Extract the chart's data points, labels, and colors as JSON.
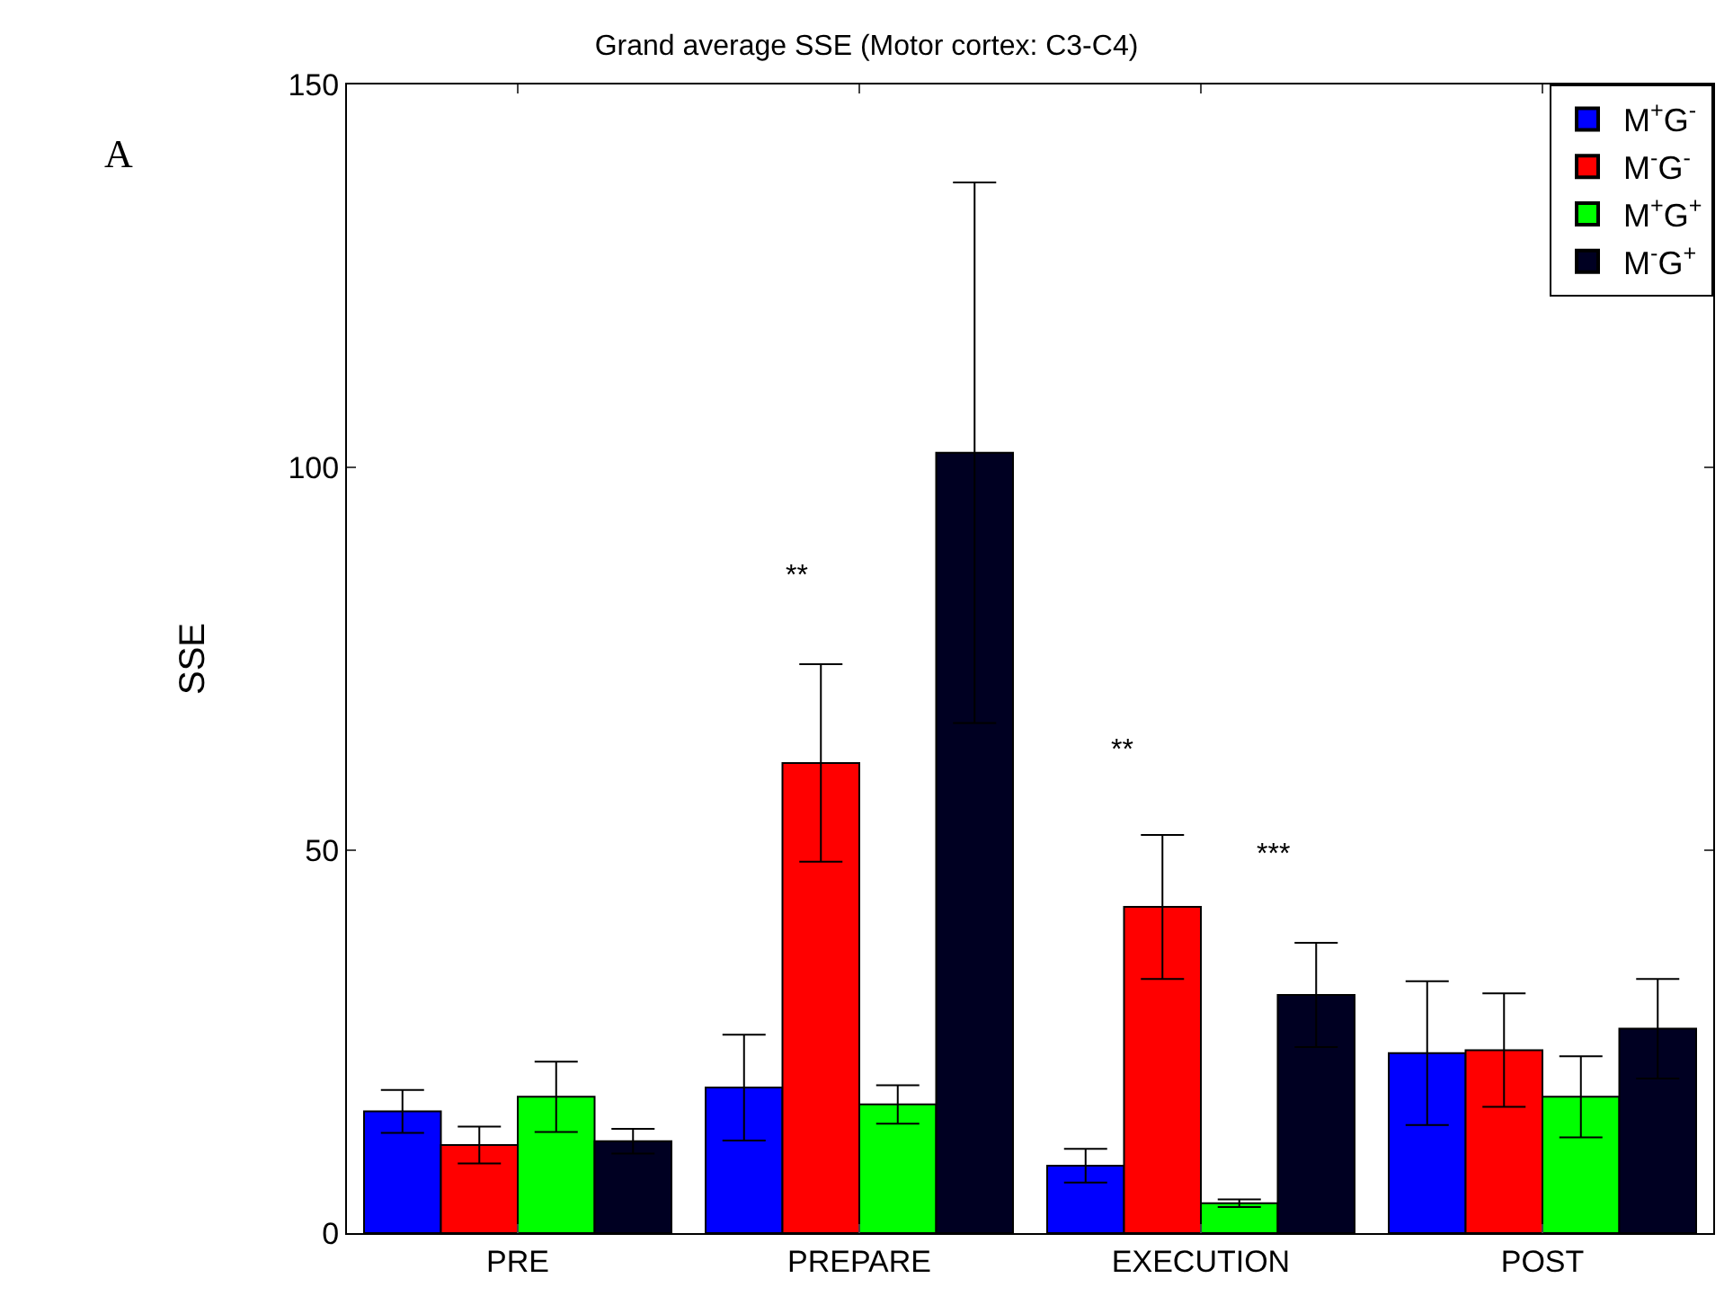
{
  "chart_data": {
    "type": "bar",
    "title": "Grand average SSE (Motor cortex: C3-C4)",
    "ylabel": "SSE",
    "categories": [
      "PRE",
      "PREPARE",
      "EXECUTION",
      "POST"
    ],
    "series": [
      {
        "name": "M$^{+}$G$^{-}$",
        "color": "#0000ff",
        "values": [
          15.9,
          19.0,
          8.8,
          23.5
        ],
        "errors": [
          2.8,
          6.9,
          2.2,
          9.4
        ]
      },
      {
        "name": "M$^{-}$G$^{-}$",
        "color": "#ff0000",
        "values": [
          11.5,
          61.4,
          42.6,
          23.9
        ],
        "errors": [
          2.4,
          12.9,
          9.4,
          7.4
        ]
      },
      {
        "name": "M$^{+}$G$^{+}$",
        "color": "#00ff00",
        "values": [
          17.8,
          16.8,
          3.9,
          17.8
        ],
        "errors": [
          4.6,
          2.5,
          0.5,
          5.3
        ]
      },
      {
        "name": "M$^{-}$G$^{+}$",
        "color": "#000022",
        "values": [
          12.0,
          101.9,
          31.1,
          26.7
        ],
        "errors": [
          1.6,
          35.3,
          6.8,
          6.5
        ]
      }
    ],
    "ylim": [
      0,
      150
    ],
    "yticks": [
      0,
      50,
      100,
      150
    ],
    "legend": "top right",
    "annotations": [
      "A",
      "**",
      "**",
      "***"
    ]
  }
}
